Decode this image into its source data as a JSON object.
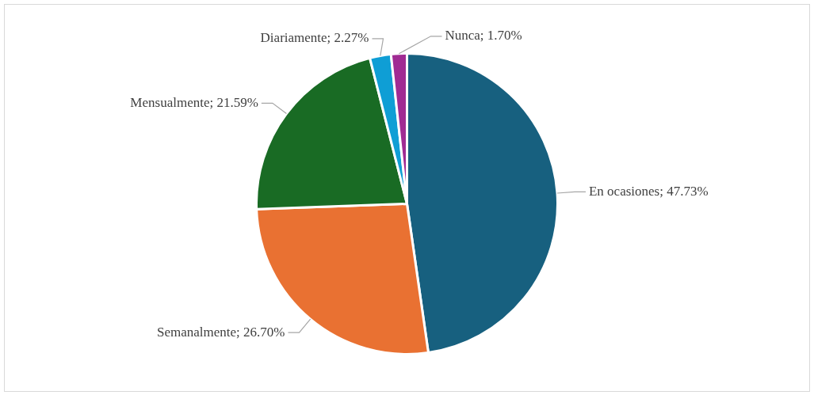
{
  "chart_data": {
    "type": "pie",
    "categories": [
      "En ocasiones",
      "Semanalmente",
      "Mensualmente",
      "Diariamente",
      "Nunca"
    ],
    "values": [
      47.73,
      26.7,
      21.59,
      2.27,
      1.7
    ],
    "colors": [
      "#17607f",
      "#e97132",
      "#196b24",
      "#0f9ed5",
      "#a02b93"
    ],
    "value_labels": [
      "47.73%",
      "26.70%",
      "21.59%",
      "2.27%",
      "1.70%"
    ],
    "legend": false
  }
}
